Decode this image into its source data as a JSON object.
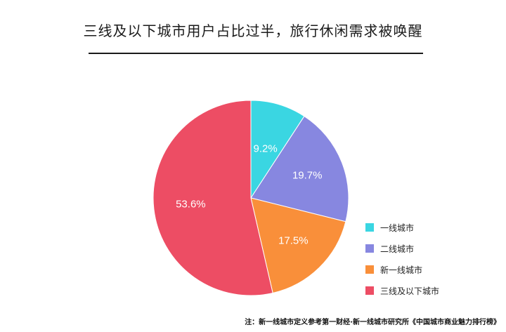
{
  "title": "三线及以下城市用户占比过半，旅行休闲需求被唤醒",
  "note": "注：新一线城市定义参考第一财经·新一线城市研究所《中国城市商业魅力排行榜》",
  "chart_data": {
    "type": "pie",
    "title": "三线及以下城市用户占比过半，旅行休闲需求被唤醒",
    "unit": "%",
    "legend_position": "bottom-right",
    "slices": [
      {
        "label": "一线城市",
        "value": 9.2,
        "display": "9.2%",
        "color": "#3ad6e2"
      },
      {
        "label": "二线城市",
        "value": 19.7,
        "display": "19.7%",
        "color": "#8787e0"
      },
      {
        "label": "新一线城市",
        "value": 17.5,
        "display": "17.5%",
        "color": "#f98f3a"
      },
      {
        "label": "三线及以下城市",
        "value": 53.6,
        "display": "53.6%",
        "color": "#ed4d64"
      }
    ]
  }
}
